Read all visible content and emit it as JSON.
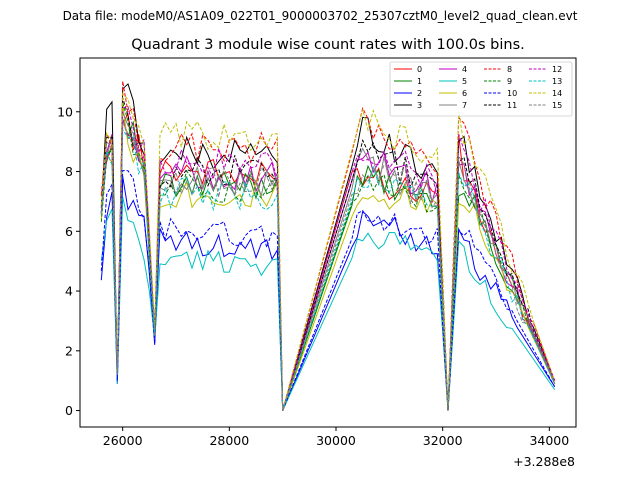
{
  "figure": {
    "suptitle": "Data file: modeM0/AS1A09_022T01_9000003702_25307cztM0_level2_quad_clean.evt"
  },
  "chart_data": {
    "type": "line",
    "title": "Quadrant 3 module wise count rates with 100.0s bins.",
    "xlabel": "",
    "ylabel": "",
    "x_offset_label": "+3.288e8",
    "xlim": [
      25200,
      34500
    ],
    "ylim": [
      -0.55,
      11.8
    ],
    "xticks": [
      26000,
      28000,
      30000,
      32000,
      34000
    ],
    "xtick_labels": [
      "26000",
      "28000",
      "30000",
      "32000",
      "34000"
    ],
    "yticks": [
      0,
      2,
      4,
      6,
      8,
      10
    ],
    "ytick_labels": [
      "0",
      "2",
      "4",
      "6",
      "8",
      "10"
    ],
    "legend_placement": "top-right",
    "segments": [
      {
        "start": 25600,
        "end": 25900
      },
      {
        "start": 26000,
        "end": 29000
      },
      {
        "start": 30400,
        "end": 34100
      }
    ],
    "series": [
      {
        "name": "0",
        "color": "#ff0000",
        "dash": "solid",
        "profile": [
          7.0,
          8.8,
          9.0,
          1.1,
          10.0,
          8.3,
          2.3,
          8.2,
          7.7,
          0.0,
          8.6,
          7.8,
          7.2,
          0.0,
          8.7,
          7.4,
          1.0
        ]
      },
      {
        "name": "1",
        "color": "#008000",
        "dash": "solid",
        "profile": [
          6.5,
          8.7,
          9.0,
          1.3,
          10.2,
          8.2,
          2.5,
          7.4,
          7.6,
          0.0,
          7.4,
          7.8,
          7.0,
          0.0,
          7.7,
          7.2,
          0.9
        ]
      },
      {
        "name": "2",
        "color": "#0000ff",
        "dash": "solid",
        "profile": [
          4.4,
          6.6,
          7.0,
          0.9,
          7.5,
          6.5,
          2.2,
          5.7,
          5.3,
          0.0,
          5.9,
          6.6,
          5.4,
          0.0,
          5.8,
          5.3,
          0.8
        ]
      },
      {
        "name": "3",
        "color": "#000000",
        "dash": "solid",
        "profile": [
          6.8,
          9.6,
          10.2,
          1.1,
          11.1,
          9.0,
          2.6,
          8.6,
          8.6,
          0.0,
          8.8,
          9.5,
          7.9,
          0.0,
          9.4,
          8.2,
          1.0
        ]
      },
      {
        "name": "4",
        "color": "#bf00bf",
        "dash": "solid",
        "profile": [
          6.6,
          8.6,
          8.8,
          1.1,
          10.1,
          8.4,
          2.4,
          8.0,
          7.8,
          0.0,
          8.3,
          8.6,
          7.3,
          0.0,
          8.2,
          7.5,
          0.9
        ]
      },
      {
        "name": "5",
        "color": "#00bfbf",
        "dash": "solid",
        "profile": [
          4.8,
          6.3,
          6.6,
          0.9,
          7.0,
          5.2,
          2.4,
          5.1,
          4.9,
          0.0,
          5.5,
          5.9,
          5.3,
          0.0,
          5.5,
          4.8,
          0.7
        ]
      },
      {
        "name": "6",
        "color": "#bfbf00",
        "dash": "solid",
        "profile": [
          6.4,
          8.5,
          8.7,
          1.2,
          9.8,
          7.8,
          2.5,
          7.3,
          7.2,
          0.0,
          7.0,
          7.4,
          6.8,
          0.0,
          7.3,
          7.0,
          0.9
        ]
      },
      {
        "name": "7",
        "color": "#808080",
        "dash": "solid",
        "profile": [
          6.6,
          8.4,
          8.8,
          1.2,
          9.8,
          8.0,
          2.5,
          7.8,
          7.6,
          0.0,
          8.0,
          8.3,
          7.1,
          0.0,
          8.4,
          7.5,
          1.0
        ]
      },
      {
        "name": "8",
        "color": "#ff0000",
        "dash": "dashed",
        "profile": [
          7.2,
          9.2,
          9.3,
          1.2,
          10.5,
          8.8,
          2.7,
          8.8,
          8.8,
          0.0,
          9.3,
          9.6,
          8.2,
          0.0,
          9.6,
          8.8,
          1.0
        ]
      },
      {
        "name": "9",
        "color": "#008000",
        "dash": "dashed",
        "profile": [
          6.7,
          8.6,
          9.0,
          1.3,
          9.9,
          8.0,
          2.5,
          7.6,
          7.4,
          0.0,
          7.5,
          7.6,
          6.9,
          0.0,
          7.8,
          7.3,
          0.9
        ]
      },
      {
        "name": "10",
        "color": "#0000ff",
        "dash": "dashed",
        "profile": [
          4.6,
          6.9,
          7.3,
          1.0,
          8.0,
          6.6,
          2.3,
          6.1,
          5.8,
          0.0,
          6.2,
          6.7,
          5.7,
          0.0,
          6.1,
          5.8,
          0.8
        ]
      },
      {
        "name": "11",
        "color": "#000000",
        "dash": "dashed",
        "profile": [
          6.7,
          8.8,
          9.0,
          1.2,
          10.0,
          8.6,
          2.5,
          8.0,
          8.0,
          0.0,
          8.3,
          8.8,
          7.4,
          0.0,
          8.4,
          7.8,
          1.0
        ]
      },
      {
        "name": "12",
        "color": "#bf00bf",
        "dash": "dashed",
        "profile": [
          6.7,
          8.9,
          9.0,
          1.2,
          10.1,
          8.7,
          2.6,
          8.3,
          8.2,
          0.0,
          8.6,
          8.9,
          7.6,
          0.0,
          8.7,
          8.0,
          1.0
        ]
      },
      {
        "name": "13",
        "color": "#00bfbf",
        "dash": "dashed",
        "profile": [
          6.3,
          8.4,
          8.7,
          1.2,
          9.6,
          7.8,
          2.5,
          7.3,
          7.2,
          0.0,
          7.6,
          7.9,
          6.8,
          0.0,
          7.6,
          7.1,
          0.9
        ]
      },
      {
        "name": "14",
        "color": "#bfbf00",
        "dash": "dashed",
        "profile": [
          7.0,
          9.1,
          9.3,
          1.3,
          10.4,
          9.0,
          2.8,
          9.1,
          9.2,
          0.0,
          9.4,
          9.8,
          8.4,
          0.0,
          9.7,
          9.0,
          1.0
        ]
      },
      {
        "name": "15",
        "color": "#808080",
        "dash": "dashed",
        "profile": [
          6.6,
          8.5,
          8.8,
          1.2,
          9.7,
          8.1,
          2.5,
          7.7,
          7.6,
          0.0,
          7.8,
          8.1,
          7.1,
          0.0,
          8.0,
          7.4,
          0.9
        ]
      }
    ],
    "profile_x": [
      25600,
      25700,
      25800,
      25900,
      26000,
      26400,
      26600,
      26700,
      28900,
      29000,
      30400,
      30500,
      31900,
      32100,
      32300,
      32500,
      34100
    ]
  }
}
